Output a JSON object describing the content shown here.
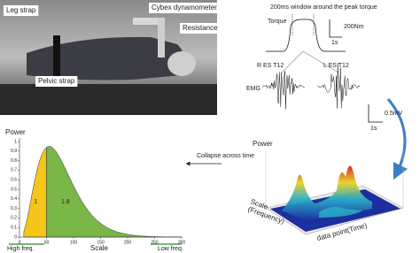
{
  "photo": {
    "labels": [
      "Leg strap",
      "Cybex dynamometer",
      "Resistance",
      "Pelvic strap"
    ]
  },
  "signals": {
    "window_note": "200ms window around the peak torque",
    "torque_label": "Torque",
    "torque_scale": "200Nm",
    "torque_time": "1s",
    "emg_label": "EMG",
    "right_channel": "R ES T12",
    "left_channel": "L ES T12",
    "emg_scale": "0.5mV",
    "emg_time": "1s"
  },
  "surface_plot": {
    "z_label": "Power",
    "scale_label": "Scale\n(Frequency)",
    "time_label": "data point(Time)"
  },
  "arrow_note": "Collapse across time",
  "power_chart": {
    "y_label": "Power",
    "yticks": [
      0,
      0.1,
      0.2,
      0.3,
      0.4,
      0.5,
      0.6,
      0.7,
      0.8,
      0.9,
      1
    ],
    "xticks": [
      0,
      50,
      100,
      150,
      200,
      250,
      300
    ],
    "area_labels": [
      "1",
      "1.8"
    ],
    "x_label": "Scale",
    "left_note": "High freq.",
    "right_note": "Low freq."
  }
}
